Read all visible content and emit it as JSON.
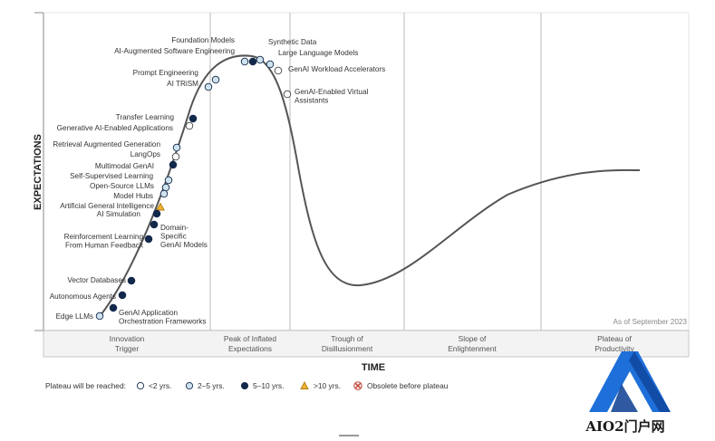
{
  "axes": {
    "y_title": "EXPECTATIONS",
    "x_title": "TIME"
  },
  "date_note": "As of September 2023",
  "phases": [
    {
      "line1": "Innovation",
      "line2": "Trigger"
    },
    {
      "line1": "Peak of Inflated",
      "line2": "Expectations"
    },
    {
      "line1": "Trough of",
      "line2": "Disillusionment"
    },
    {
      "line1": "Slope of",
      "line2": "Enlightenment"
    },
    {
      "line1": "Plateau of",
      "line2": "Productivity"
    }
  ],
  "legend": {
    "title": "Plateau will be reached:",
    "items": [
      {
        "key": "lt2",
        "label": "<2 yrs."
      },
      {
        "key": "2to5",
        "label": "2–5 yrs."
      },
      {
        "key": "5to10",
        "label": "5–10 yrs."
      },
      {
        "key": "gt10",
        "label": ">10 yrs."
      },
      {
        "key": "obsolete",
        "label": "Obsolete before plateau"
      }
    ]
  },
  "category_colors": {
    "lt2": "#ffffff",
    "2to5": "#cfe3ee",
    "5to10": "#13294b",
    "gt10": "#f2b233",
    "obsolete": "#c0392b"
  },
  "technologies": [
    {
      "lines": [
        "Foundation Models"
      ],
      "cat": "2to5"
    },
    {
      "lines": [
        "AI-Augmented Software Engineering"
      ],
      "cat": "5to10"
    },
    {
      "lines": [
        "Synthetic Data"
      ],
      "cat": "2to5"
    },
    {
      "lines": [
        "Large Language Models"
      ],
      "cat": "2to5"
    },
    {
      "lines": [
        "GenAI Workload Accelerators"
      ],
      "cat": "lt2"
    },
    {
      "lines": [
        "GenAI-Enabled Virtual",
        "Assistants"
      ],
      "cat": "lt2"
    },
    {
      "lines": [
        "Prompt Engineering"
      ],
      "cat": "2to5"
    },
    {
      "lines": [
        "AI TRiSM"
      ],
      "cat": "2to5"
    },
    {
      "lines": [
        "Transfer Learning"
      ],
      "cat": "5to10"
    },
    {
      "lines": [
        "Generative AI-Enabled Applications"
      ],
      "cat": "lt2"
    },
    {
      "lines": [
        "Retrieval Augmented Generation"
      ],
      "cat": "2to5"
    },
    {
      "lines": [
        "LangOps"
      ],
      "cat": "lt2"
    },
    {
      "lines": [
        "Multimodal GenAI"
      ],
      "cat": "5to10"
    },
    {
      "lines": [
        "Self-Supervised Learning"
      ],
      "cat": "2to5"
    },
    {
      "lines": [
        "Open-Source LLMs"
      ],
      "cat": "2to5"
    },
    {
      "lines": [
        "Model Hubs"
      ],
      "cat": "2to5"
    },
    {
      "lines": [
        "Artificial General Intelligence"
      ],
      "cat": "gt10"
    },
    {
      "lines": [
        "AI Simulation"
      ],
      "cat": "5to10"
    },
    {
      "lines": [
        "Domain-",
        "Specific",
        "GenAI Models"
      ],
      "cat": "5to10"
    },
    {
      "lines": [
        "Reinforcement Learning",
        "From Human Feedback"
      ],
      "cat": "5to10"
    },
    {
      "lines": [
        "Vector Databases"
      ],
      "cat": "5to10"
    },
    {
      "lines": [
        "Autonomous Agents"
      ],
      "cat": "5to10"
    },
    {
      "lines": [
        "GenAI Application",
        "Orchestration Frameworks"
      ],
      "cat": "5to10"
    },
    {
      "lines": [
        "Edge LLMs"
      ],
      "cat": "2to5"
    }
  ],
  "watermark": {
    "text": "AIO2门户网",
    "logo_colors": [
      "#1e6fd9",
      "#0b3d91"
    ]
  }
}
